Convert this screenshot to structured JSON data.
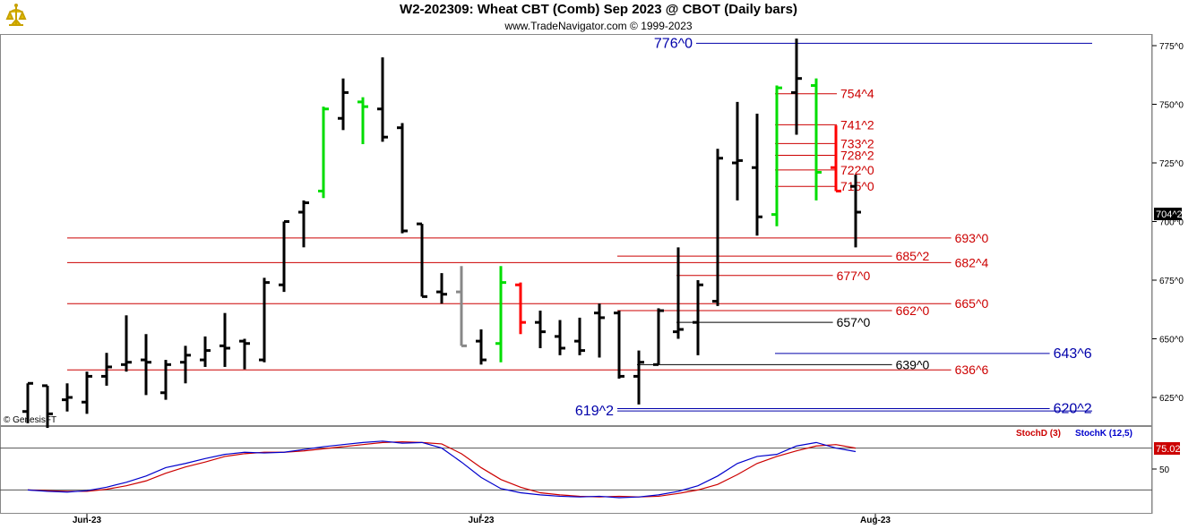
{
  "header": {
    "title": "W2-202309:  Wheat CBT (Comb) Sep 2023 @ CBOT  (Daily bars)",
    "subtitle": "www.TradeNavigator.com © 1999-2023",
    "watermark": "© GenesisFT"
  },
  "colors": {
    "bar": "#000000",
    "up_highlight": "#00dd00",
    "down_highlight": "#ff0000",
    "neutral": "#888888",
    "red_level": "#cc0000",
    "blue_level": "#0000aa",
    "black_level": "#000000",
    "stoch_d": "#cc0000",
    "stoch_k": "#0000cc",
    "last_price_bg": "#000000",
    "stoch_last_bg": "#cc0000"
  },
  "chart_data": {
    "type": "ohlc",
    "price_axis": {
      "ticks": [
        625,
        650,
        675,
        700,
        725,
        750,
        775
      ],
      "tick_labels": [
        "625^0",
        "650^0",
        "675^0",
        "700^0",
        "725^0",
        "750^0",
        "775^0"
      ],
      "last_price_label": "704^2",
      "last_price": 704.25
    },
    "date_labels": [
      {
        "label": "Jun-23",
        "bar": 3
      },
      {
        "label": "Jul-23",
        "bar": 23
      },
      {
        "label": "Aug-23",
        "bar": 43
      }
    ],
    "bars": [
      {
        "o": 619,
        "h": 631,
        "l": 614,
        "c": 631,
        "color": "black"
      },
      {
        "o": 630,
        "h": 630,
        "l": 612,
        "c": 618,
        "color": "black"
      },
      {
        "o": 624,
        "h": 631,
        "l": 619,
        "c": 625,
        "color": "black"
      },
      {
        "o": 623,
        "h": 636,
        "l": 618,
        "c": 634,
        "color": "black"
      },
      {
        "o": 634,
        "h": 644,
        "l": 630,
        "c": 638,
        "color": "black"
      },
      {
        "o": 639,
        "h": 660,
        "l": 636,
        "c": 640,
        "color": "black"
      },
      {
        "o": 641,
        "h": 652,
        "l": 626,
        "c": 640,
        "color": "black"
      },
      {
        "o": 627,
        "h": 641,
        "l": 624,
        "c": 639,
        "color": "black"
      },
      {
        "o": 640,
        "h": 647,
        "l": 631,
        "c": 643,
        "color": "black"
      },
      {
        "o": 641,
        "h": 651,
        "l": 638,
        "c": 645,
        "color": "black"
      },
      {
        "o": 647,
        "h": 661,
        "l": 638,
        "c": 646,
        "color": "black"
      },
      {
        "o": 649,
        "h": 650,
        "l": 637,
        "c": 648,
        "color": "black"
      },
      {
        "o": 641,
        "h": 676,
        "l": 640,
        "c": 674,
        "color": "black"
      },
      {
        "o": 673,
        "h": 700,
        "l": 670,
        "c": 700,
        "color": "black"
      },
      {
        "o": 704,
        "h": 709,
        "l": 689,
        "c": 708,
        "color": "black"
      },
      {
        "o": 713,
        "h": 749,
        "l": 710,
        "c": 748,
        "color": "green"
      },
      {
        "o": 744,
        "h": 761,
        "l": 739,
        "c": 755,
        "color": "black"
      },
      {
        "o": 751,
        "h": 753,
        "l": 733,
        "c": 749,
        "color": "green"
      },
      {
        "o": 748,
        "h": 770,
        "l": 734,
        "c": 736,
        "color": "black"
      },
      {
        "o": 740,
        "h": 742,
        "l": 695,
        "c": 696,
        "color": "black"
      },
      {
        "o": 699,
        "h": 699,
        "l": 668,
        "c": 668,
        "color": "black"
      },
      {
        "o": 670,
        "h": 678,
        "l": 665,
        "c": 669,
        "color": "black"
      },
      {
        "o": 670,
        "h": 681,
        "l": 647,
        "c": 647,
        "color": "gray"
      },
      {
        "o": 649,
        "h": 654,
        "l": 639,
        "c": 641,
        "color": "black"
      },
      {
        "o": 648,
        "h": 681,
        "l": 640,
        "c": 674,
        "color": "green"
      },
      {
        "o": 673,
        "h": 674,
        "l": 652,
        "c": 657,
        "color": "red"
      },
      {
        "o": 657,
        "h": 662,
        "l": 646,
        "c": 653,
        "color": "black"
      },
      {
        "o": 651,
        "h": 658,
        "l": 643,
        "c": 646,
        "color": "black"
      },
      {
        "o": 649,
        "h": 659,
        "l": 643,
        "c": 645,
        "color": "black"
      },
      {
        "o": 661,
        "h": 665,
        "l": 642,
        "c": 659,
        "color": "black"
      },
      {
        "o": 661,
        "h": 662,
        "l": 633,
        "c": 634,
        "color": "black"
      },
      {
        "o": 634,
        "h": 645,
        "l": 622,
        "c": 640,
        "color": "black"
      },
      {
        "o": 639,
        "h": 663,
        "l": 639,
        "c": 662,
        "color": "black"
      },
      {
        "o": 653,
        "h": 689,
        "l": 650,
        "c": 654,
        "color": "black"
      },
      {
        "o": 657,
        "h": 675,
        "l": 643,
        "c": 673,
        "color": "black"
      },
      {
        "o": 666,
        "h": 731,
        "l": 664,
        "c": 727,
        "color": "black"
      },
      {
        "o": 725,
        "h": 751,
        "l": 709,
        "c": 726,
        "color": "black"
      },
      {
        "o": 723,
        "h": 746,
        "l": 694,
        "c": 702,
        "color": "black"
      },
      {
        "o": 703,
        "h": 758,
        "l": 698,
        "c": 757,
        "color": "green"
      },
      {
        "o": 755,
        "h": 778,
        "l": 737,
        "c": 761,
        "color": "black"
      },
      {
        "o": 758,
        "h": 761,
        "l": 709,
        "c": 721,
        "color": "green"
      },
      {
        "o": 723,
        "h": 741,
        "l": 713,
        "c": 713,
        "color": "red"
      },
      {
        "o": 715,
        "h": 720,
        "l": 689,
        "c": 704,
        "color": "black"
      }
    ],
    "levels": [
      {
        "label": "776^0",
        "value": 776.0,
        "color": "blue",
        "x1_bar": 34,
        "x2_bar": 52,
        "label_side": "left"
      },
      {
        "label": "754^4",
        "value": 754.5,
        "color": "red",
        "x1_bar": 38,
        "x2_bar": 41.5,
        "label_side": "right"
      },
      {
        "label": "741^2",
        "value": 741.25,
        "color": "red",
        "x1_bar": 38,
        "x2_bar": 41.5,
        "label_side": "right"
      },
      {
        "label": "733^2",
        "value": 733.25,
        "color": "red",
        "x1_bar": 38,
        "x2_bar": 41.5,
        "label_side": "right"
      },
      {
        "label": "728^2",
        "value": 728.25,
        "color": "red",
        "x1_bar": 38,
        "x2_bar": 41.5,
        "label_side": "right"
      },
      {
        "label": "722^0",
        "value": 722.0,
        "color": "red",
        "x1_bar": 38,
        "x2_bar": 41.5,
        "label_side": "right"
      },
      {
        "label": "715^0",
        "value": 715.0,
        "color": "red",
        "x1_bar": 38,
        "x2_bar": 41.5,
        "label_side": "right"
      },
      {
        "label": "693^0",
        "value": 693.0,
        "color": "red",
        "x1_bar": 0,
        "x2_bar": 47.3,
        "label_side": "right"
      },
      {
        "label": "685^2",
        "value": 685.25,
        "color": "red",
        "x1_bar": 30,
        "x2_bar": 44.3,
        "label_side": "right"
      },
      {
        "label": "682^4",
        "value": 682.5,
        "color": "red",
        "x1_bar": 0,
        "x2_bar": 47.3,
        "label_side": "right"
      },
      {
        "label": "677^0",
        "value": 677.0,
        "color": "red",
        "x1_bar": 33,
        "x2_bar": 41.3,
        "label_side": "right"
      },
      {
        "label": "665^0",
        "value": 665.0,
        "color": "red",
        "x1_bar": 0,
        "x2_bar": 47.3,
        "label_side": "right"
      },
      {
        "label": "662^0",
        "value": 662.0,
        "color": "red",
        "x1_bar": 30,
        "x2_bar": 44.3,
        "label_side": "right"
      },
      {
        "label": "657^0",
        "value": 657.0,
        "color": "black",
        "x1_bar": 33,
        "x2_bar": 41.3,
        "label_side": "right"
      },
      {
        "label": "643^6",
        "value": 643.75,
        "color": "blue",
        "x1_bar": 38,
        "x2_bar": 52.3,
        "label_side": "right"
      },
      {
        "label": "639^0",
        "value": 639.0,
        "color": "black",
        "x1_bar": 31,
        "x2_bar": 44.3,
        "label_side": "right"
      },
      {
        "label": "636^6",
        "value": 636.75,
        "color": "red",
        "x1_bar": 0,
        "x2_bar": 47.3,
        "label_side": "right"
      },
      {
        "label": "620^2",
        "value": 620.25,
        "color": "blue",
        "x1_bar": 30,
        "x2_bar": 52.3,
        "label_side": "right"
      },
      {
        "label": "619^2",
        "value": 619.25,
        "color": "blue",
        "x1_bar": 30,
        "x2_bar": 52,
        "label_side": "left"
      }
    ],
    "stochastic": {
      "ylim": [
        0,
        100
      ],
      "ref_lines": [
        80,
        20
      ],
      "tick_labels": [
        "50"
      ],
      "tick_values": [
        50
      ],
      "last_label": "75.02",
      "last_value": 75.02,
      "legend": [
        {
          "name": "StochD (3)",
          "color": "red"
        },
        {
          "name": "StochK (12,5)",
          "color": "blue"
        }
      ],
      "k": [
        20,
        18,
        17,
        19,
        24,
        31,
        40,
        52,
        58,
        65,
        71,
        74,
        73,
        74,
        78,
        82,
        85,
        88,
        90,
        87,
        88,
        80,
        60,
        38,
        22,
        16,
        13,
        11,
        10,
        11,
        9,
        10,
        13,
        18,
        26,
        40,
        58,
        68,
        71,
        83,
        88,
        80,
        75
      ],
      "d": [
        20,
        19,
        18,
        18,
        21,
        26,
        33,
        44,
        53,
        60,
        68,
        72,
        74,
        74,
        76,
        79,
        82,
        85,
        88,
        89,
        88,
        86,
        72,
        52,
        35,
        24,
        16,
        13,
        11,
        10,
        11,
        10,
        11,
        15,
        20,
        28,
        42,
        58,
        68,
        76,
        83,
        85,
        80
      ]
    }
  }
}
